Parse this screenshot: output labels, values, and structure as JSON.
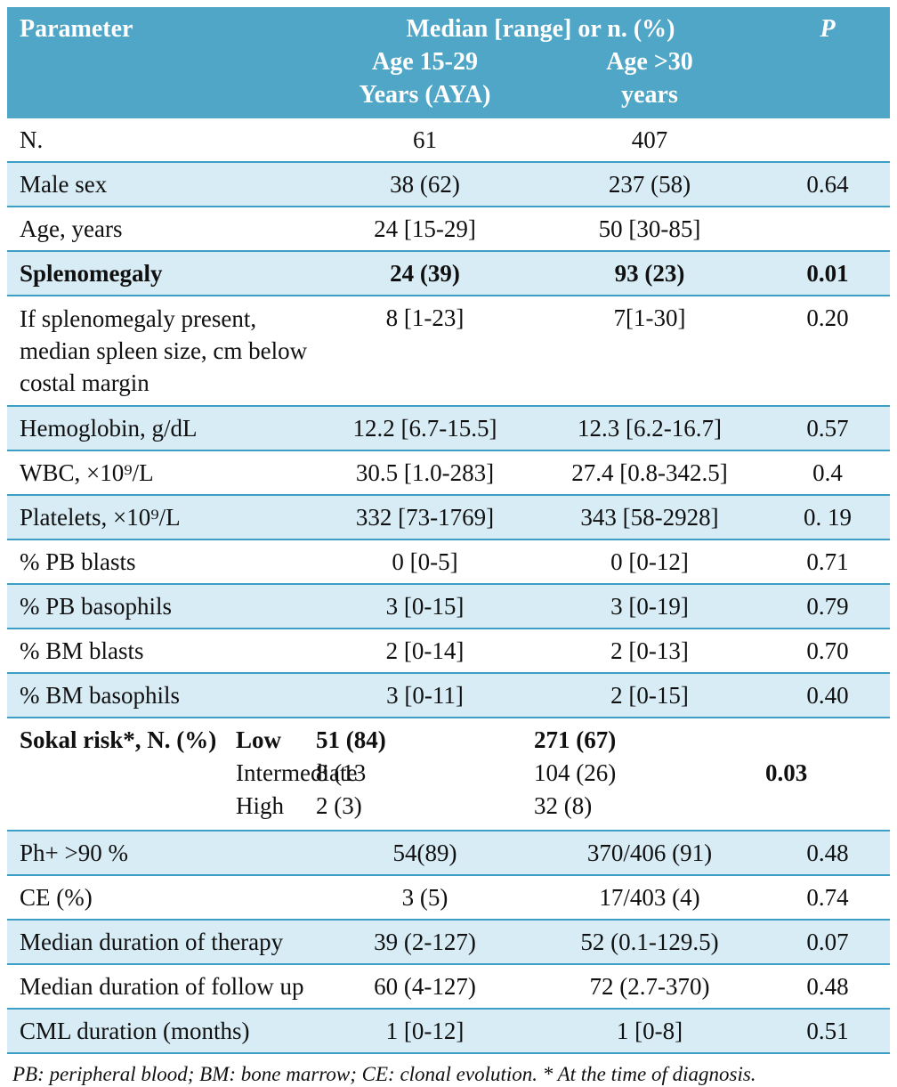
{
  "colors": {
    "header_bg": "#4fa6c7",
    "shaded_row_bg": "#d8ecf5",
    "divider": "#3d9fc5",
    "text": "#101010"
  },
  "table": {
    "header": {
      "parameter": "Parameter",
      "span": "Median [range] or n. (%)",
      "group1_line1": "Age 15-29",
      "group1_line2": "Years (AYA)",
      "group2_line1": "Age >30",
      "group2_line2": "years",
      "p": "P"
    },
    "rows": [
      {
        "parameter": "N.",
        "aya": "61",
        "older": "407",
        "p": ""
      },
      {
        "parameter": "Male sex",
        "aya": "38 (62)",
        "older": "237 (58)",
        "p": "0.64"
      },
      {
        "parameter": "Age, years",
        "aya": "24 [15-29]",
        "older": "50 [30-85]",
        "p": ""
      },
      {
        "parameter": "Splenomegaly",
        "aya": "24 (39)",
        "older": "93 (23)",
        "p": "0.01"
      },
      {
        "parameter": "If splenomegaly present, median spleen size, cm below costal margin",
        "aya": "8 [1-23]",
        "older": "7[1-30]",
        "p": "0.20"
      },
      {
        "parameter": "Hemoglobin, g/dL",
        "aya": "12.2 [6.7-15.5]",
        "older": "12.3 [6.2-16.7]",
        "p": "0.57"
      },
      {
        "parameter": "WBC, ×10⁹/L",
        "aya": "30.5 [1.0-283]",
        "older": "27.4 [0.8-342.5]",
        "p": "0.4"
      },
      {
        "parameter": "Platelets, ×10⁹/L",
        "aya": "332 [73-1769]",
        "older": "343 [58-2928]",
        "p": "0. 19"
      },
      {
        "parameter": "% PB blasts",
        "aya": "0 [0-5]",
        "older": "0 [0-12]",
        "p": "0.71"
      },
      {
        "parameter": "% PB basophils",
        "aya": "3 [0-15]",
        "older": "3 [0-19]",
        "p": "0.79"
      },
      {
        "parameter": "% BM blasts",
        "aya": "2 [0-14]",
        "older": "2 [0-13]",
        "p": "0.70"
      },
      {
        "parameter": "% BM basophils",
        "aya": "3 [0-11]",
        "older": "2 [0-15]",
        "p": "0.40"
      },
      {
        "parameter": "Ph+ >90 %",
        "aya": "54(89)",
        "older": "370/406 (91)",
        "p": "0.48"
      },
      {
        "parameter": "CE (%)",
        "aya": "3 (5)",
        "older": "17/403 (4)",
        "p": "0.74"
      },
      {
        "parameter": "Median duration of therapy",
        "aya": "39 (2-127)",
        "older": "52 (0.1-129.5)",
        "p": "0.07"
      },
      {
        "parameter": "Median duration of follow up",
        "aya": "60 (4-127)",
        "older": "72 (2.7-370)",
        "p": "0.48"
      },
      {
        "parameter": "CML duration (months)",
        "aya": "1 [0-12]",
        "older": "1 [0-8]",
        "p": "0.51"
      }
    ],
    "sokal": {
      "parameter": "Sokal risk*, N. (%)",
      "subrows": [
        {
          "label": "Low",
          "aya": "51 (84)",
          "older": "271 (67)",
          "p": "0.03"
        },
        {
          "label": "Intermediate",
          "aya": "8 (13",
          "older": "104 (26)",
          "p": ""
        },
        {
          "label": "High",
          "aya": "2 (3)",
          "older": "32 (8)",
          "p": ""
        }
      ]
    },
    "footnote": "PB: peripheral blood; BM: bone marrow; CE: clonal evolution. * At the time of diagnosis."
  }
}
